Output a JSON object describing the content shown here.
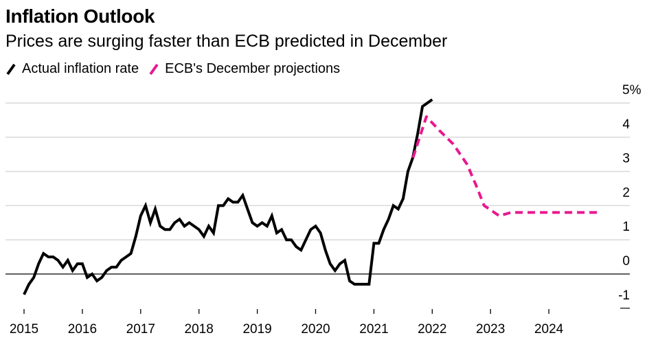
{
  "chart_data": {
    "type": "line",
    "title": "Inflation Outlook",
    "subtitle": "Prices are surging faster than ECB predicted in December",
    "xlabel": "",
    "ylabel": "",
    "ylim": [
      -1,
      5
    ],
    "xlim": [
      2015.0,
      2025.0
    ],
    "grid": true,
    "legend_position": "top-left",
    "y_ticks": [
      {
        "value": 5,
        "label": "5%"
      },
      {
        "value": 4,
        "label": "4"
      },
      {
        "value": 3,
        "label": "3"
      },
      {
        "value": 2,
        "label": "2"
      },
      {
        "value": 1,
        "label": "1"
      },
      {
        "value": 0,
        "label": "0"
      },
      {
        "value": -1,
        "label": "-1"
      }
    ],
    "x_ticks": [
      {
        "value": 2015,
        "label": "2015"
      },
      {
        "value": 2016,
        "label": "2016"
      },
      {
        "value": 2017,
        "label": "2017"
      },
      {
        "value": 2018,
        "label": "2018"
      },
      {
        "value": 2019,
        "label": "2019"
      },
      {
        "value": 2020,
        "label": "2020"
      },
      {
        "value": 2021,
        "label": "2021"
      },
      {
        "value": 2022,
        "label": "2022"
      },
      {
        "value": 2023,
        "label": "2023"
      },
      {
        "value": 2024,
        "label": "2024"
      }
    ],
    "series": [
      {
        "name": "Actual inflation rate",
        "color": "#000000",
        "style": "solid",
        "start": "2015-01",
        "frequency": "monthly",
        "values": [
          -0.6,
          -0.3,
          -0.1,
          0.3,
          0.6,
          0.5,
          0.5,
          0.4,
          0.2,
          0.4,
          0.1,
          0.3,
          0.3,
          -0.1,
          0.0,
          -0.2,
          -0.1,
          0.1,
          0.2,
          0.2,
          0.4,
          0.5,
          0.6,
          1.1,
          1.7,
          2.0,
          1.5,
          1.9,
          1.4,
          1.3,
          1.3,
          1.5,
          1.6,
          1.4,
          1.5,
          1.4,
          1.3,
          1.1,
          1.4,
          1.2,
          2.0,
          2.0,
          2.2,
          2.1,
          2.1,
          2.3,
          1.9,
          1.5,
          1.4,
          1.5,
          1.4,
          1.7,
          1.2,
          1.3,
          1.0,
          1.0,
          0.8,
          0.7,
          1.0,
          1.3,
          1.4,
          1.2,
          0.7,
          0.3,
          0.1,
          0.3,
          0.4,
          -0.2,
          -0.3,
          -0.3,
          -0.3,
          -0.3,
          0.9,
          0.9,
          1.3,
          1.6,
          2.0,
          1.9,
          2.2,
          3.0,
          3.4,
          4.1,
          4.9,
          5.0,
          5.1
        ]
      },
      {
        "name": "ECB's December projections",
        "color": "#e8188f",
        "style": "dashed",
        "points": [
          {
            "x": 2021.67,
            "y": 3.4
          },
          {
            "x": 2021.9,
            "y": 4.6
          },
          {
            "x": 2022.12,
            "y": 4.2
          },
          {
            "x": 2022.36,
            "y": 3.8
          },
          {
            "x": 2022.44,
            "y": 3.6
          },
          {
            "x": 2022.6,
            "y": 3.2
          },
          {
            "x": 2022.75,
            "y": 2.6
          },
          {
            "x": 2022.89,
            "y": 2.0
          },
          {
            "x": 2023.15,
            "y": 1.7
          },
          {
            "x": 2023.35,
            "y": 1.8
          },
          {
            "x": 2023.6,
            "y": 1.8
          },
          {
            "x": 2023.85,
            "y": 1.8
          },
          {
            "x": 2024.1,
            "y": 1.8
          },
          {
            "x": 2024.35,
            "y": 1.8
          },
          {
            "x": 2024.6,
            "y": 1.8
          },
          {
            "x": 2024.9,
            "y": 1.8
          }
        ]
      }
    ]
  },
  "header": {
    "title": "Inflation Outlook",
    "subtitle": "Prices are surging faster than ECB predicted in December"
  },
  "legend": {
    "items": [
      {
        "label": "Actual inflation rate",
        "color": "#000000",
        "icon": "solid-line-swatch"
      },
      {
        "label": "ECB's December projections",
        "color": "#e8188f",
        "icon": "dashed-line-swatch"
      }
    ]
  },
  "colors": {
    "grid": "#d9d9d9",
    "zero_line": "#000000",
    "actual": "#000000",
    "projection": "#e8188f"
  }
}
